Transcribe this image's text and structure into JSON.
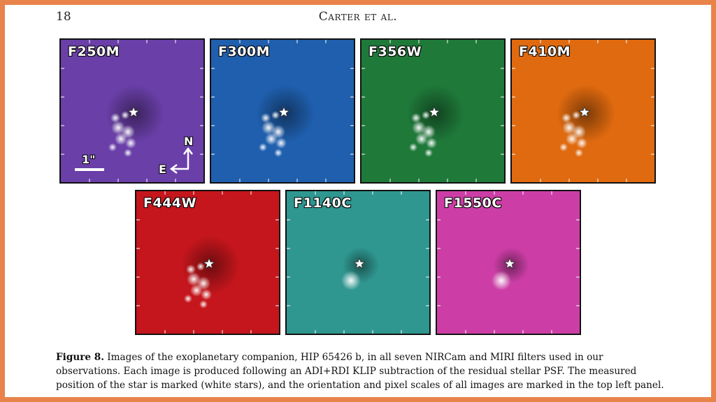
{
  "header": {
    "page_number": "18",
    "running_head": "Carter et al."
  },
  "figure": {
    "panels": [
      {
        "label": "F250M",
        "color": "#6a3fa8"
      },
      {
        "label": "F300M",
        "color": "#1f5fae"
      },
      {
        "label": "F356W",
        "color": "#1f7a3a"
      },
      {
        "label": "F410M",
        "color": "#e06a0f"
      },
      {
        "label": "F444W",
        "color": "#c4161c"
      },
      {
        "label": "F1140C",
        "color": "#2f9690"
      },
      {
        "label": "F1550C",
        "color": "#cc3ea6"
      }
    ],
    "scale_bar_label": "1\"",
    "compass_north": "N",
    "compass_east": "E"
  },
  "caption": {
    "label": "Figure 8.",
    "text": "Images of the exoplanetary companion, HIP 65426 b, in all seven NIRCam and MIRI filters used in our observations. Each image is produced following an ADI+RDI KLIP subtraction of the residual stellar PSF. The measured position of the star is marked (white stars), and the orientation and pixel scales of all images are marked in the top left panel."
  }
}
